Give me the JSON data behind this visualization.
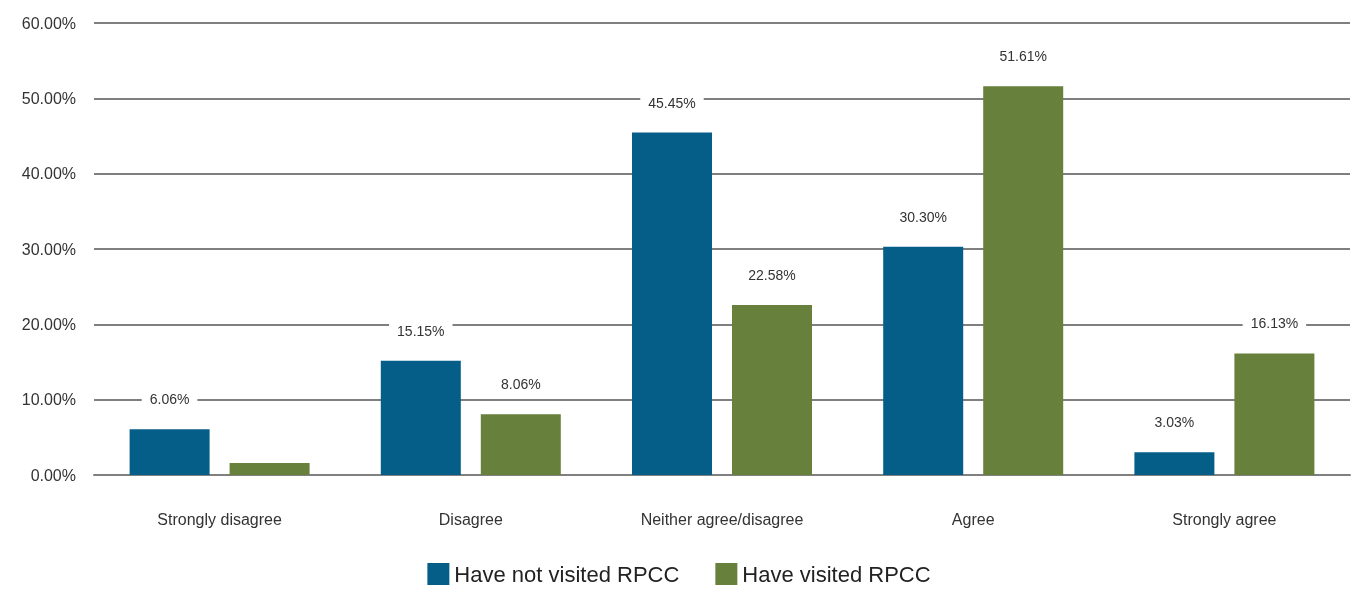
{
  "chart_data": {
    "type": "bar",
    "categories": [
      "Strongly disagree",
      "Disagree",
      "Neither agree/disagree",
      "Agree",
      "Strongly agree"
    ],
    "series": [
      {
        "name": "Have not visited RPCC",
        "color": "#045e87",
        "values": [
          6.06,
          15.15,
          45.45,
          30.3,
          3.03
        ],
        "value_labels": [
          "6.06%",
          "15.15%",
          "45.45%",
          "30.30%",
          "3.03%"
        ]
      },
      {
        "name": "Have visited RPCC",
        "color": "#67803b",
        "values": [
          1.6,
          8.06,
          22.58,
          51.61,
          16.13
        ],
        "value_labels": [
          null,
          "8.06%",
          "22.58%",
          "51.61%",
          "16.13%"
        ]
      }
    ],
    "ylim": [
      0,
      60
    ],
    "yticks": [
      {
        "value": 0,
        "label": "0.00%"
      },
      {
        "value": 10,
        "label": "10.00%"
      },
      {
        "value": 20,
        "label": "20.00%"
      },
      {
        "value": 30,
        "label": "30.00%"
      },
      {
        "value": 40,
        "label": "40.00%"
      },
      {
        "value": 50,
        "label": "50.00%"
      },
      {
        "value": 60,
        "label": "60.00%"
      }
    ],
    "grid": "y",
    "legend": "bottom"
  }
}
